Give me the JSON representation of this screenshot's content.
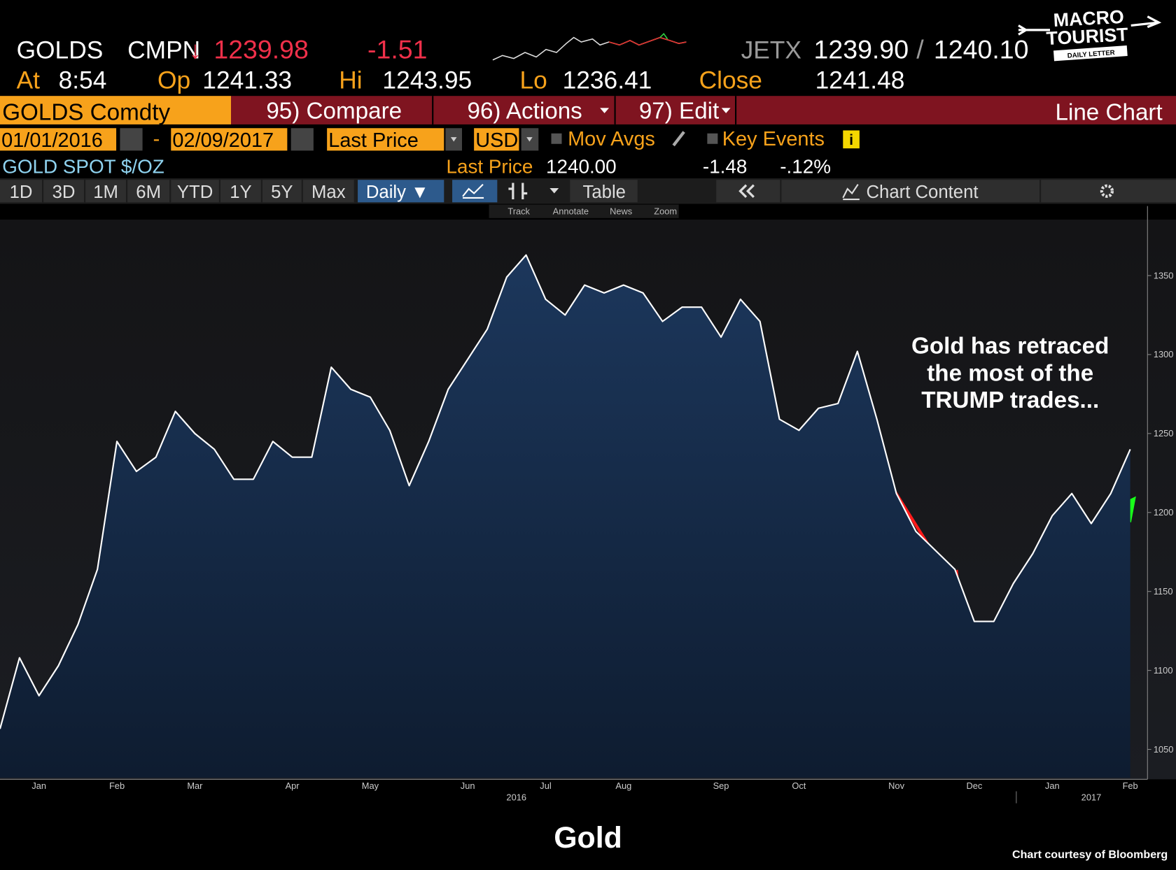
{
  "header": {
    "ticker": "GOLDS",
    "source": "CMPN",
    "arrow": "↓",
    "price": "1239.98",
    "change": "-1.51",
    "venue": "JETX",
    "bid": "1239.90",
    "slash": "/",
    "ask": "1240.10",
    "at_label": "At",
    "time": "8:54",
    "open_label": "Op",
    "open": "1241.33",
    "high_label": "Hi",
    "high": "1243.95",
    "low_label": "Lo",
    "low": "1236.41",
    "close_label": "Close",
    "close": "1241.48"
  },
  "logo": {
    "line1": "MACRO",
    "line2": "TOURIST",
    "line3": "DAILY LETTER"
  },
  "menu": {
    "security": "GOLDS Comdty",
    "compare": "95) Compare",
    "actions": "96) Actions",
    "edit": "97) Edit",
    "view": "Line Chart"
  },
  "controls": {
    "start_date": "01/01/2016",
    "dash": "-",
    "end_date": "02/09/2017",
    "field": "Last Price",
    "currency": "USD",
    "mov_avgs": "Mov Avgs",
    "key_events": "Key Events"
  },
  "legend_row": {
    "name": "GOLD SPOT $/OZ",
    "field": "Last Price",
    "last": "1240.00",
    "change": "-1.48",
    "pct_change": "-.12%"
  },
  "toolbar": {
    "ranges": [
      "1D",
      "3D",
      "1M",
      "6M",
      "YTD",
      "1Y",
      "5Y",
      "Max"
    ],
    "period": "Daily ▼",
    "table": "Table",
    "content": "Chart Content"
  },
  "tools": [
    "Track",
    "Annotate",
    "News",
    "Zoom"
  ],
  "chart_data": {
    "type": "area",
    "title": "Gold",
    "source": "Chart courtesy of Bloomberg",
    "annotation": [
      "Gold has retraced",
      "the most of the",
      "TRUMP trades..."
    ],
    "categories": [
      null,
      null,
      "Jan",
      null,
      null,
      null,
      "Feb",
      null,
      null,
      null,
      "Mar",
      null,
      null,
      null,
      null,
      "Apr",
      null,
      null,
      null,
      "May",
      null,
      null,
      null,
      null,
      "Jun",
      null,
      null,
      null,
      "Jul",
      null,
      null,
      null,
      "Aug",
      null,
      null,
      null,
      null,
      "Sep",
      null,
      null,
      null,
      "Oct",
      null,
      null,
      null,
      null,
      "Nov",
      null,
      null,
      null,
      "Dec",
      null,
      null,
      null,
      "Jan",
      null,
      null,
      null,
      "Feb"
    ],
    "x_groups": [
      "2016",
      "2017"
    ],
    "values": [
      1063,
      1108,
      1084,
      1103,
      1129,
      1164,
      1245,
      1226,
      1235,
      1264,
      1250,
      1240,
      1221,
      1221,
      1245,
      1235,
      1235,
      1292,
      1278,
      1273,
      1252,
      1217,
      1245,
      1278,
      1297,
      1316,
      1349,
      1363,
      1335,
      1325,
      1344,
      1339,
      1344,
      1339,
      1321,
      1330,
      1330,
      1311,
      1335,
      1321,
      1259,
      1252,
      1266,
      1269,
      1302,
      1259,
      1212,
      1188,
      1176,
      1164,
      1131,
      1131,
      1155,
      1174,
      1198,
      1212,
      1193,
      1212,
      1240
    ],
    "color": "#ffffff",
    "fill": "#1c375c",
    "ylim": [
      1032,
      1394
    ],
    "yticks": [
      1050,
      1100,
      1150,
      1200,
      1250,
      1300,
      1350
    ],
    "y_axis_side": "right"
  }
}
